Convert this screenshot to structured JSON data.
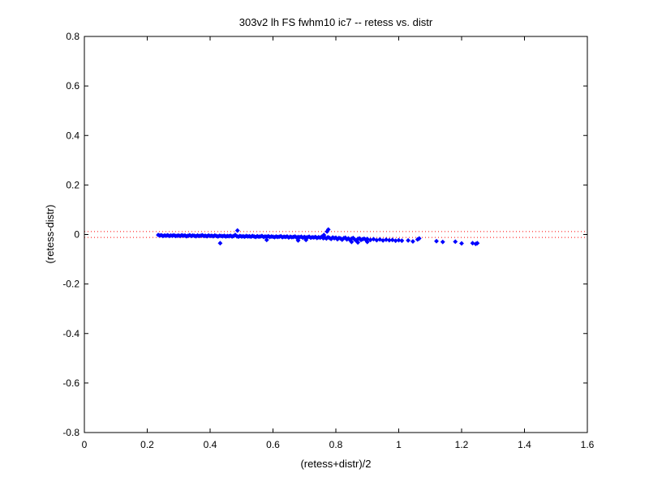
{
  "chart_data": {
    "type": "scatter",
    "title": "303v2 lh FS fwhm10 ic7 -- retess vs. distr",
    "xlabel": "(retess+distr)/2",
    "ylabel": "(retess-distr)",
    "xlim": [
      0,
      1.6
    ],
    "ylim": [
      -0.8,
      0.8
    ],
    "xticks": [
      "0",
      "0.2",
      "0.4",
      "0.6",
      "0.8",
      "1",
      "1.2",
      "1.4",
      "1.6"
    ],
    "yticks": [
      "-0.8",
      "-0.6",
      "-0.4",
      "-0.2",
      "0",
      "0.2",
      "0.4",
      "0.6",
      "0.8"
    ],
    "grid": false,
    "point_color": "#0000ff",
    "reference_lines": [
      {
        "y": 0.012,
        "style": "dotted",
        "color": "#ff0000"
      },
      {
        "y": -0.012,
        "style": "dotted",
        "color": "#ff0000"
      }
    ],
    "series": [
      {
        "points": [
          [
            0.235,
            -0.002
          ],
          [
            0.24,
            -0.004
          ],
          [
            0.245,
            -0.003
          ],
          [
            0.25,
            -0.006
          ],
          [
            0.255,
            -0.004
          ],
          [
            0.26,
            -0.005
          ],
          [
            0.265,
            -0.003
          ],
          [
            0.27,
            -0.006
          ],
          [
            0.275,
            -0.004
          ],
          [
            0.28,
            -0.005
          ],
          [
            0.285,
            -0.003
          ],
          [
            0.29,
            -0.006
          ],
          [
            0.295,
            -0.005
          ],
          [
            0.3,
            -0.004
          ],
          [
            0.305,
            -0.006
          ],
          [
            0.31,
            -0.003
          ],
          [
            0.315,
            -0.005
          ],
          [
            0.32,
            -0.004
          ],
          [
            0.325,
            -0.007
          ],
          [
            0.33,
            -0.005
          ],
          [
            0.335,
            -0.003
          ],
          [
            0.34,
            -0.006
          ],
          [
            0.345,
            -0.004
          ],
          [
            0.35,
            -0.005
          ],
          [
            0.355,
            -0.007
          ],
          [
            0.36,
            -0.004
          ],
          [
            0.365,
            -0.006
          ],
          [
            0.37,
            -0.005
          ],
          [
            0.375,
            -0.003
          ],
          [
            0.38,
            -0.006
          ],
          [
            0.385,
            -0.005
          ],
          [
            0.39,
            -0.007
          ],
          [
            0.395,
            -0.004
          ],
          [
            0.4,
            -0.006
          ],
          [
            0.405,
            -0.005
          ],
          [
            0.41,
            -0.007
          ],
          [
            0.415,
            -0.004
          ],
          [
            0.42,
            -0.006
          ],
          [
            0.425,
            -0.008
          ],
          [
            0.43,
            -0.005
          ],
          [
            0.435,
            -0.006
          ],
          [
            0.44,
            -0.007
          ],
          [
            0.445,
            -0.005
          ],
          [
            0.45,
            -0.008
          ],
          [
            0.455,
            -0.006
          ],
          [
            0.46,
            -0.007
          ],
          [
            0.465,
            -0.005
          ],
          [
            0.47,
            -0.008
          ],
          [
            0.475,
            -0.006
          ],
          [
            0.48,
            -0.002
          ],
          [
            0.485,
            -0.007
          ],
          [
            0.49,
            -0.009
          ],
          [
            0.495,
            -0.006
          ],
          [
            0.5,
            -0.008
          ],
          [
            0.505,
            -0.007
          ],
          [
            0.51,
            -0.009
          ],
          [
            0.515,
            -0.006
          ],
          [
            0.52,
            -0.008
          ],
          [
            0.525,
            -0.007
          ],
          [
            0.53,
            -0.009
          ],
          [
            0.535,
            -0.006
          ],
          [
            0.54,
            -0.008
          ],
          [
            0.545,
            -0.01
          ],
          [
            0.55,
            -0.007
          ],
          [
            0.555,
            -0.009
          ],
          [
            0.56,
            -0.008
          ],
          [
            0.565,
            -0.006
          ],
          [
            0.57,
            -0.01
          ],
          [
            0.575,
            -0.008
          ],
          [
            0.58,
            -0.009
          ],
          [
            0.585,
            -0.007
          ],
          [
            0.59,
            -0.01
          ],
          [
            0.595,
            -0.008
          ],
          [
            0.6,
            -0.009
          ],
          [
            0.605,
            -0.011
          ],
          [
            0.61,
            -0.008
          ],
          [
            0.615,
            -0.01
          ],
          [
            0.62,
            -0.009
          ],
          [
            0.625,
            -0.007
          ],
          [
            0.63,
            -0.011
          ],
          [
            0.635,
            -0.009
          ],
          [
            0.64,
            -0.01
          ],
          [
            0.645,
            -0.008
          ],
          [
            0.65,
            -0.012
          ],
          [
            0.655,
            -0.009
          ],
          [
            0.66,
            -0.011
          ],
          [
            0.665,
            -0.01
          ],
          [
            0.67,
            -0.008
          ],
          [
            0.675,
            -0.012
          ],
          [
            0.68,
            -0.01
          ],
          [
            0.685,
            -0.011
          ],
          [
            0.69,
            -0.009
          ],
          [
            0.695,
            -0.013
          ],
          [
            0.7,
            -0.01
          ],
          [
            0.705,
            -0.012
          ],
          [
            0.71,
            -0.011
          ],
          [
            0.715,
            -0.009
          ],
          [
            0.72,
            -0.013
          ],
          [
            0.725,
            -0.011
          ],
          [
            0.73,
            -0.012
          ],
          [
            0.735,
            -0.01
          ],
          [
            0.74,
            -0.014
          ],
          [
            0.745,
            -0.011
          ],
          [
            0.75,
            -0.013
          ],
          [
            0.755,
            -0.009
          ],
          [
            0.76,
            -0.015
          ],
          [
            0.765,
            -0.012
          ],
          [
            0.77,
            -0.016
          ],
          [
            0.775,
            -0.011
          ],
          [
            0.78,
            -0.014
          ],
          [
            0.785,
            -0.018
          ],
          [
            0.79,
            -0.012
          ],
          [
            0.795,
            -0.015
          ],
          [
            0.8,
            -0.013
          ],
          [
            0.805,
            -0.019
          ],
          [
            0.81,
            -0.014
          ],
          [
            0.815,
            -0.016
          ],
          [
            0.82,
            -0.021
          ],
          [
            0.825,
            -0.015
          ],
          [
            0.83,
            -0.013
          ],
          [
            0.835,
            -0.02
          ],
          [
            0.84,
            -0.016
          ],
          [
            0.845,
            -0.022
          ],
          [
            0.85,
            -0.017
          ],
          [
            0.855,
            -0.014
          ],
          [
            0.86,
            -0.02
          ],
          [
            0.865,
            -0.025
          ],
          [
            0.87,
            -0.018
          ],
          [
            0.875,
            -0.016
          ],
          [
            0.88,
            -0.022
          ],
          [
            0.885,
            -0.019
          ],
          [
            0.89,
            -0.017
          ],
          [
            0.895,
            -0.021
          ],
          [
            0.9,
            -0.018
          ],
          [
            0.91,
            -0.022
          ],
          [
            0.92,
            -0.019
          ],
          [
            0.93,
            -0.023
          ],
          [
            0.94,
            -0.02
          ],
          [
            0.95,
            -0.024
          ],
          [
            0.96,
            -0.021
          ],
          [
            0.97,
            -0.023
          ],
          [
            0.98,
            -0.022
          ],
          [
            0.99,
            -0.025
          ],
          [
            1.0,
            -0.023
          ],
          [
            0.432,
            -0.035
          ],
          [
            0.487,
            0.016
          ],
          [
            0.58,
            -0.022
          ],
          [
            0.68,
            -0.024
          ],
          [
            0.772,
            0.012
          ],
          [
            0.776,
            0.02
          ],
          [
            0.85,
            -0.03
          ],
          [
            0.87,
            -0.032
          ],
          [
            0.9,
            -0.03
          ],
          [
            0.705,
            -0.022
          ],
          [
            0.762,
            -0.002
          ],
          [
            1.01,
            -0.025
          ],
          [
            1.03,
            -0.024
          ],
          [
            1.045,
            -0.028
          ],
          [
            1.06,
            -0.02
          ],
          [
            1.065,
            -0.016
          ],
          [
            1.12,
            -0.027
          ],
          [
            1.14,
            -0.03
          ],
          [
            1.18,
            -0.029
          ],
          [
            1.2,
            -0.036
          ],
          [
            1.235,
            -0.035
          ],
          [
            1.245,
            -0.038
          ],
          [
            1.25,
            -0.035
          ]
        ]
      }
    ]
  }
}
